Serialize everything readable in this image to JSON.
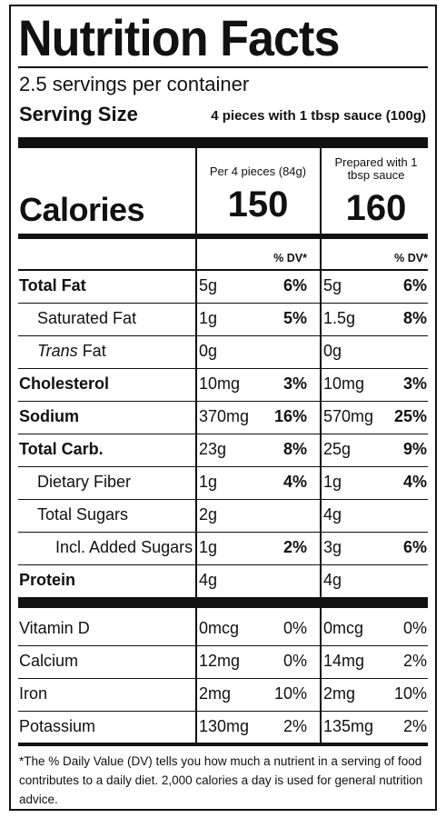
{
  "title": "Nutrition Facts",
  "servings_per_container": "2.5 servings per container",
  "serving_size_label": "Serving Size",
  "serving_size_value": "4 pieces with 1 tbsp sauce (100g)",
  "calories_label": "Calories",
  "columns": [
    {
      "header": "Per 4 pieces (84g)",
      "calories": "150",
      "dv_header": "% DV*"
    },
    {
      "header": "Prepared with 1 tbsp sauce",
      "calories": "160",
      "dv_header": "% DV*"
    }
  ],
  "nutrients": [
    {
      "name": "Total Fat",
      "a1": "5g",
      "p1": "6%",
      "a2": "5g",
      "p2": "6%"
    },
    {
      "name": "Saturated Fat",
      "a1": "1g",
      "p1": "5%",
      "a2": "1.5g",
      "p2": "8%"
    },
    {
      "name_italic": "Trans",
      "name": " Fat",
      "a1": "0g",
      "p1": "",
      "a2": "0g",
      "p2": ""
    },
    {
      "name": "Cholesterol",
      "a1": "10mg",
      "p1": "3%",
      "a2": "10mg",
      "p2": "3%"
    },
    {
      "name": "Sodium",
      "a1": "370mg",
      "p1": "16%",
      "a2": "570mg",
      "p2": "25%"
    },
    {
      "name": "Total Carb.",
      "a1": "23g",
      "p1": "8%",
      "a2": "25g",
      "p2": "9%"
    },
    {
      "name": "Dietary Fiber",
      "a1": "1g",
      "p1": "4%",
      "a2": "1g",
      "p2": "4%"
    },
    {
      "name": "Total Sugars",
      "a1": "2g",
      "p1": "",
      "a2": "4g",
      "p2": ""
    },
    {
      "name": "Incl. Added Sugars",
      "a1": "1g",
      "p1": "2%",
      "a2": "3g",
      "p2": "6%"
    },
    {
      "name": "Protein",
      "a1": "4g",
      "p1": "",
      "a2": "4g",
      "p2": ""
    }
  ],
  "vitamins": [
    {
      "name": "Vitamin D",
      "a1": "0mcg",
      "p1": "0%",
      "a2": "0mcg",
      "p2": "0%"
    },
    {
      "name": "Calcium",
      "a1": "12mg",
      "p1": "0%",
      "a2": "14mg",
      "p2": "2%"
    },
    {
      "name": "Iron",
      "a1": "2mg",
      "p1": "10%",
      "a2": "2mg",
      "p2": "10%"
    },
    {
      "name": "Potassium",
      "a1": "130mg",
      "p1": "2%",
      "a2": "135mg",
      "p2": "2%"
    }
  ],
  "footnote": "*The % Daily Value (DV) tells you how much a nutrient in a serving of food contributes to a daily diet. 2,000 calories a day is used for general nutrition advice."
}
